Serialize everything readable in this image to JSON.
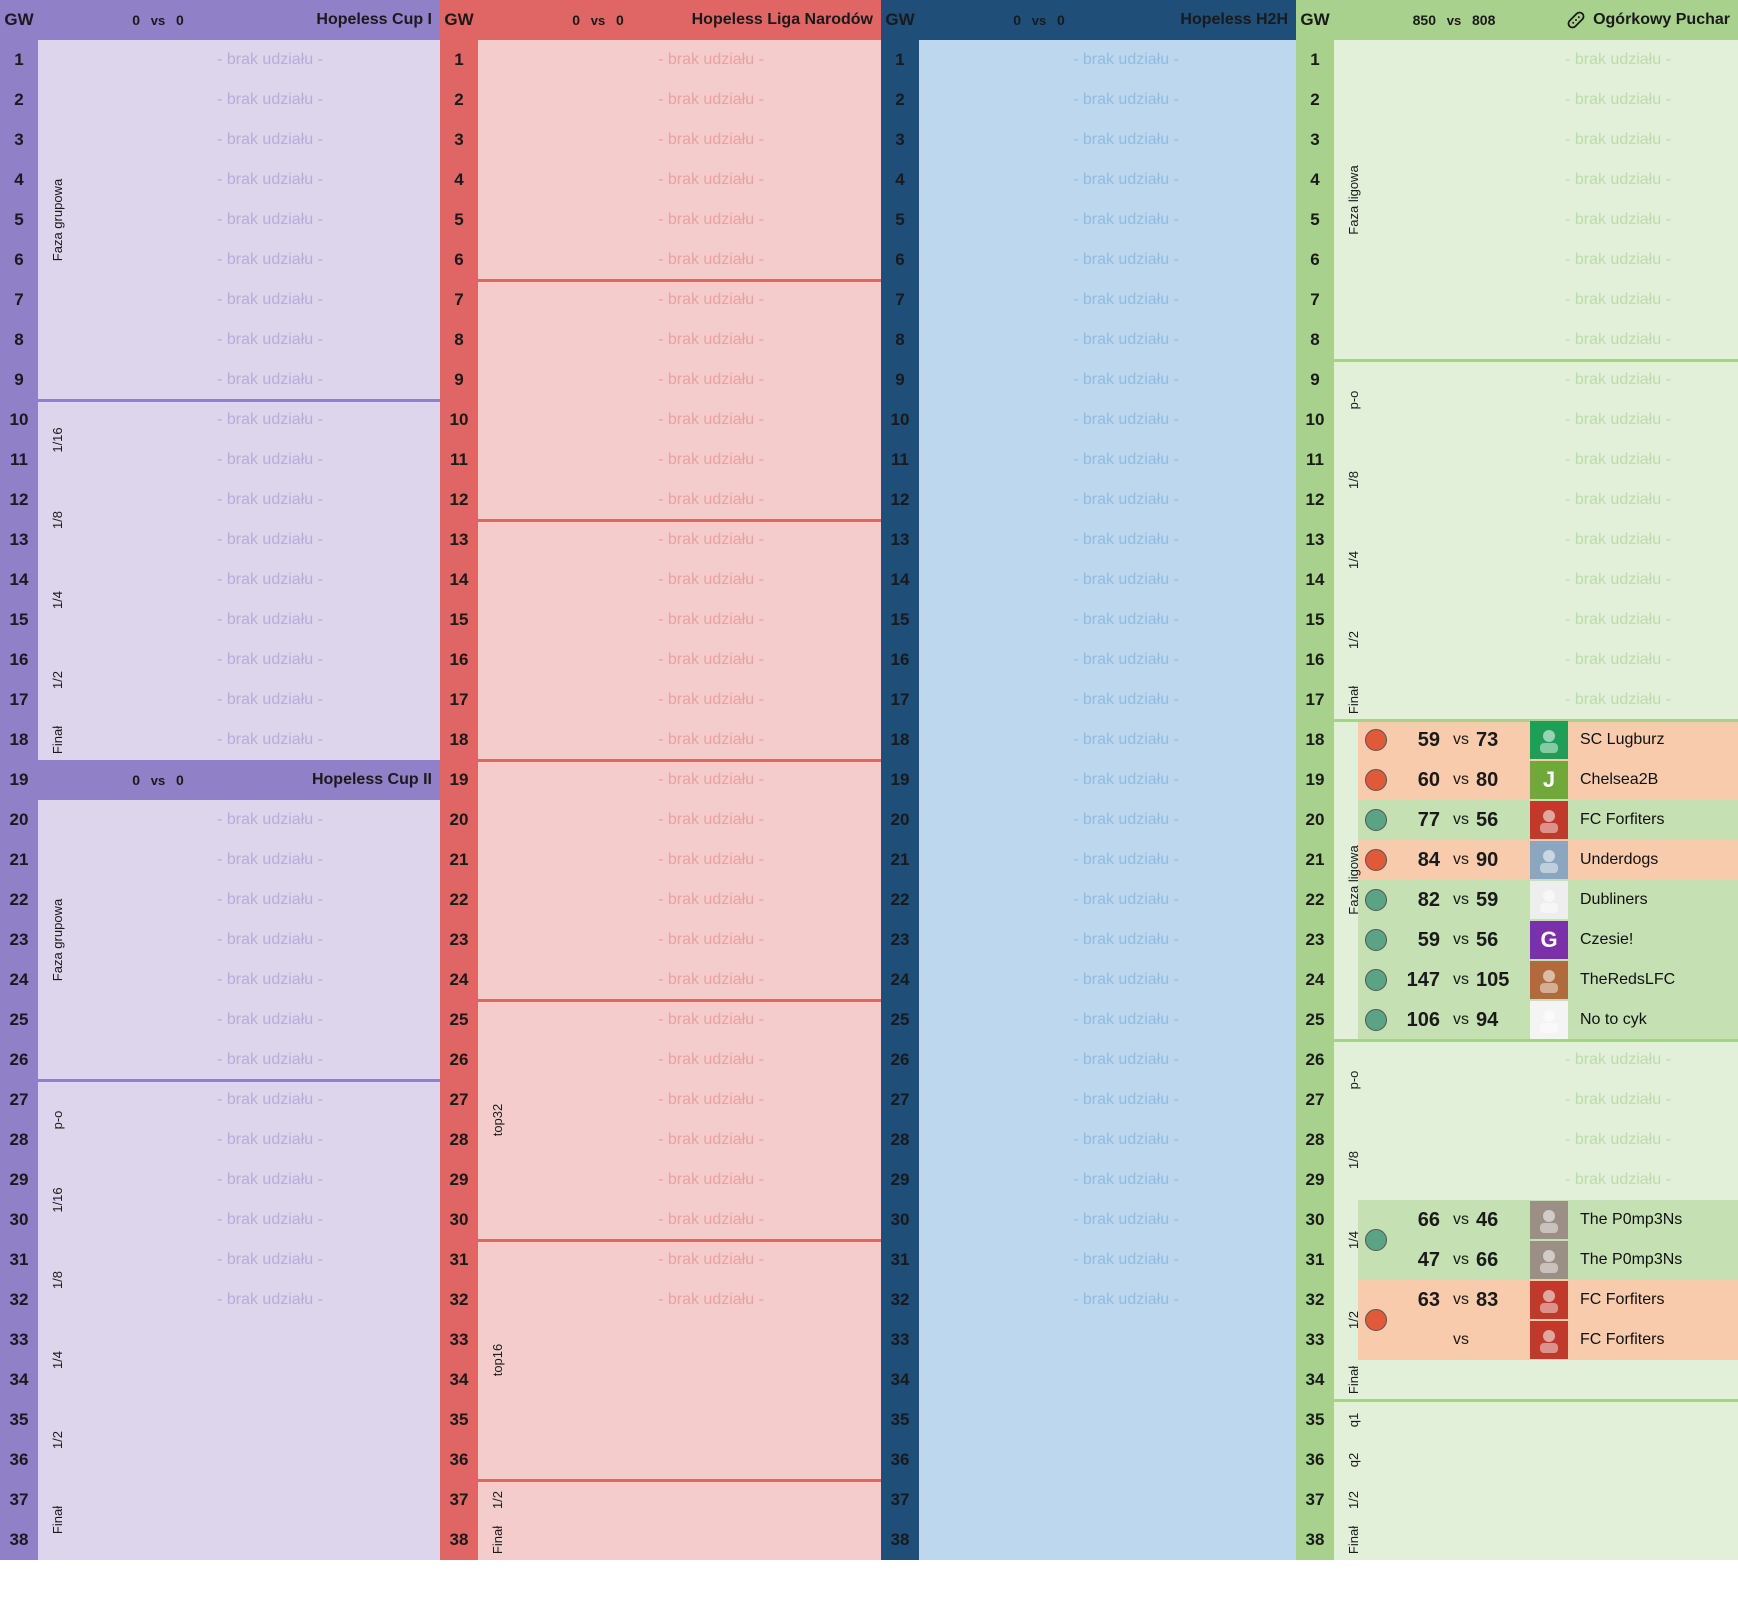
{
  "brak_label": "- brak udziału -",
  "panels": [
    {
      "id": "cup1",
      "colors": {
        "header": "#8f80c8",
        "gw": "#8f80c8",
        "body": "#dcd5ec",
        "brak": "#b8acd8",
        "sep": "#8f80c8"
      },
      "header": {
        "gw": "GW",
        "score_a": "0",
        "vs": "vs",
        "score_b": "0",
        "title": "Hopeless Cup I"
      },
      "header2": {
        "row": 19,
        "score_a": "0",
        "vs": "vs",
        "score_b": "0",
        "title": "Hopeless Cup II"
      },
      "brak_rows": [
        1,
        2,
        3,
        4,
        5,
        6,
        7,
        8,
        9,
        10,
        11,
        12,
        13,
        14,
        15,
        16,
        17,
        18,
        20,
        21,
        22,
        23,
        24,
        25,
        26,
        27,
        28,
        29,
        30,
        31,
        32
      ],
      "separators": [
        9,
        26
      ],
      "stages": [
        {
          "label": "Faza grupowa",
          "from": 1,
          "to": 9
        },
        {
          "label": "1/16",
          "from": 10,
          "to": 11
        },
        {
          "label": "1/8",
          "from": 12,
          "to": 13
        },
        {
          "label": "1/4",
          "from": 14,
          "to": 15
        },
        {
          "label": "1/2",
          "from": 16,
          "to": 17
        },
        {
          "label": "Finał",
          "from": 18,
          "to": 18
        },
        {
          "label": "Faza grupowa",
          "from": 20,
          "to": 26
        },
        {
          "label": "p-o",
          "from": 27,
          "to": 28
        },
        {
          "label": "1/16",
          "from": 29,
          "to": 30
        },
        {
          "label": "1/8",
          "from": 31,
          "to": 32
        },
        {
          "label": "1/4",
          "from": 33,
          "to": 34
        },
        {
          "label": "1/2",
          "from": 35,
          "to": 36
        },
        {
          "label": "Finał",
          "from": 37,
          "to": 38
        }
      ]
    },
    {
      "id": "liga",
      "colors": {
        "header": "#e06666",
        "gw": "#e06666",
        "body": "#f4cccc",
        "brak": "#eaa0a0",
        "sep": "#e06666"
      },
      "header": {
        "gw": "GW",
        "score_a": "0",
        "vs": "vs",
        "score_b": "0",
        "title": "Hopeless Liga Narodów"
      },
      "brak_rows": [
        1,
        2,
        3,
        4,
        5,
        6,
        7,
        8,
        9,
        10,
        11,
        12,
        13,
        14,
        15,
        16,
        17,
        18,
        19,
        20,
        21,
        22,
        23,
        24,
        25,
        26,
        27,
        28,
        29,
        30,
        31,
        32
      ],
      "separators": [
        6,
        12,
        18,
        24,
        30,
        36
      ],
      "stages": [
        {
          "label": "top32",
          "from": 27,
          "to": 28
        },
        {
          "label": "top16",
          "from": 33,
          "to": 34
        },
        {
          "label": "1/2",
          "from": 37,
          "to": 37
        },
        {
          "label": "Finał",
          "from": 38,
          "to": 38
        }
      ]
    },
    {
      "id": "h2h",
      "colors": {
        "header": "#1f4e79",
        "gw": "#1f4e79",
        "body": "#bdd7ee",
        "brak": "#8fbce3",
        "sep": "#1f4e79"
      },
      "header": {
        "gw": "GW",
        "score_a": "0",
        "vs": "vs",
        "score_b": "0",
        "title": "Hopeless H2H"
      },
      "brak_rows": [
        1,
        2,
        3,
        4,
        5,
        6,
        7,
        8,
        9,
        10,
        11,
        12,
        13,
        14,
        15,
        16,
        17,
        18,
        19,
        20,
        21,
        22,
        23,
        24,
        25,
        26,
        27,
        28,
        29,
        30,
        31,
        32
      ],
      "separators": [],
      "stages": []
    },
    {
      "id": "puchar",
      "colors": {
        "header": "#a9d18e",
        "gw": "#a9d18e",
        "body": "#e2efd9",
        "brak": "#bcdcaa",
        "sep": "#a9d18e",
        "win": "#c5e0b3",
        "loss": "#f8cbad",
        "windot": "#5aa384",
        "lossdot": "#e05a3a"
      },
      "header": {
        "gw": "GW",
        "score_a": "850",
        "vs": "vs",
        "score_b": "808",
        "title": "Ogórkowy Puchar",
        "icon": "pickle-icon"
      },
      "brak_rows": [
        1,
        2,
        3,
        4,
        5,
        6,
        7,
        8,
        9,
        10,
        11,
        12,
        13,
        14,
        15,
        16,
        17,
        26,
        27,
        28,
        29
      ],
      "separators": [
        8,
        17,
        25,
        34
      ],
      "stages": [
        {
          "label": "Faza ligowa",
          "from": 1,
          "to": 8
        },
        {
          "label": "p-o",
          "from": 9,
          "to": 10
        },
        {
          "label": "1/8",
          "from": 11,
          "to": 12
        },
        {
          "label": "1/4",
          "from": 13,
          "to": 14
        },
        {
          "label": "1/2",
          "from": 15,
          "to": 16
        },
        {
          "label": "Finał",
          "from": 17,
          "to": 17
        },
        {
          "label": "Faza ligowa",
          "from": 18,
          "to": 25
        },
        {
          "label": "p-o",
          "from": 26,
          "to": 27
        },
        {
          "label": "1/8",
          "from": 28,
          "to": 29
        },
        {
          "label": "1/4",
          "from": 30,
          "to": 31
        },
        {
          "label": "1/2",
          "from": 32,
          "to": 33
        },
        {
          "label": "Finał",
          "from": 34,
          "to": 34
        },
        {
          "label": "q1",
          "from": 35,
          "to": 35
        },
        {
          "label": "q2",
          "from": 36,
          "to": 36
        },
        {
          "label": "1/2",
          "from": 37,
          "to": 37
        },
        {
          "label": "Finał",
          "from": 38,
          "to": 38
        }
      ],
      "matches": [
        {
          "gw": 18,
          "result": "loss",
          "score_a": "59",
          "vs": "vs",
          "score_b": "73",
          "team": "SC Lugburz",
          "avatar": {
            "bg": "#1f9e57",
            "letter": "",
            "icon": "shirt-icon"
          }
        },
        {
          "gw": 19,
          "result": "loss",
          "score_a": "60",
          "vs": "vs",
          "score_b": "80",
          "team": "Chelsea2B",
          "avatar": {
            "bg": "#70a83a",
            "letter": "J"
          }
        },
        {
          "gw": 20,
          "result": "win",
          "score_a": "77",
          "vs": "vs",
          "score_b": "56",
          "team": "FC Forfiters",
          "avatar": {
            "bg": "#c0392b",
            "letter": "",
            "icon": "team-photo-icon"
          }
        },
        {
          "gw": 21,
          "result": "loss",
          "score_a": "84",
          "vs": "vs",
          "score_b": "90",
          "team": "Underdogs",
          "avatar": {
            "bg": "#8aa6c0",
            "letter": "",
            "icon": "person-photo-icon"
          }
        },
        {
          "gw": 22,
          "result": "win",
          "score_a": "82",
          "vs": "vs",
          "score_b": "59",
          "team": "Dubliners",
          "avatar": {
            "bg": "#eeeeee",
            "letter": "",
            "icon": "kappa-logo-icon"
          }
        },
        {
          "gw": 23,
          "result": "win",
          "score_a": "59",
          "vs": "vs",
          "score_b": "56",
          "team": "Czesie!",
          "avatar": {
            "bg": "#7b2fa8",
            "letter": "G"
          }
        },
        {
          "gw": 24,
          "result": "win",
          "score_a": "147",
          "vs": "vs",
          "score_b": "105",
          "team": "TheRedsLFC",
          "avatar": {
            "bg": "#b06a3c",
            "letter": "",
            "icon": "players-photo-icon"
          }
        },
        {
          "gw": 25,
          "result": "win",
          "score_a": "106",
          "vs": "vs",
          "score_b": "94",
          "team": "No to cyk",
          "avatar": {
            "bg": "#f4f4f4",
            "letter": "",
            "icon": "player-drawing-icon"
          }
        },
        {
          "gw": 30,
          "result": "win",
          "score_a": "66",
          "vs": "vs",
          "score_b": "46",
          "team": "The P0mp3Ns",
          "avatar": {
            "bg": "#9c8f86",
            "letter": "",
            "icon": "knight-photo-icon"
          },
          "dot": true
        },
        {
          "gw": 31,
          "result": "win",
          "score_a": "47",
          "vs": "vs",
          "score_b": "66",
          "team": "The P0mp3Ns",
          "avatar": {
            "bg": "#9c8f86",
            "letter": "",
            "icon": "knight-photo-icon"
          },
          "dot": false
        },
        {
          "gw": 32,
          "result": "loss",
          "score_a": "63",
          "vs": "vs",
          "score_b": "83",
          "team": "FC Forfiters",
          "avatar": {
            "bg": "#c0392b",
            "letter": "",
            "icon": "team-photo-icon"
          },
          "dot": true
        },
        {
          "gw": 33,
          "result": "loss",
          "score_a": "",
          "vs": "vs",
          "score_b": "",
          "team": "FC Forfiters",
          "avatar": {
            "bg": "#c0392b",
            "letter": "",
            "icon": "team-photo-icon"
          },
          "dot": false
        }
      ]
    }
  ]
}
